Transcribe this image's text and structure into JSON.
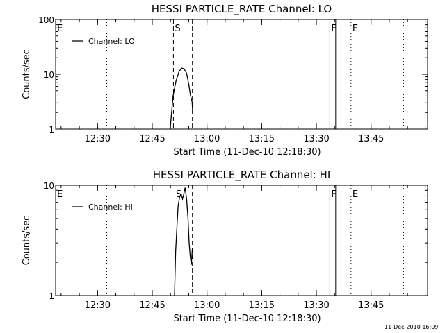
{
  "chart_data": [
    {
      "type": "line",
      "title": "HESSI PARTICLE_RATE Channel: LO",
      "xlabel": "Start Time (11-Dec-10 12:18:30)",
      "ylabel": "Counts/sec",
      "yscale": "log",
      "ylim": [
        1,
        100
      ],
      "y_ticks": [
        {
          "value": 1,
          "label": "1"
        },
        {
          "value": 10,
          "label": "10"
        },
        {
          "value": 100,
          "label": "100"
        }
      ],
      "xlim_minutes_after_start": [
        0,
        102
      ],
      "x_ticks": [
        {
          "value": 11.5,
          "label": "12:30"
        },
        {
          "value": 26.5,
          "label": "12:45"
        },
        {
          "value": 41.5,
          "label": "13:00"
        },
        {
          "value": 56.5,
          "label": "13:15"
        },
        {
          "value": 71.5,
          "label": "13:30"
        },
        {
          "value": 86.5,
          "label": "13:45"
        }
      ],
      "series": [
        {
          "name": "Channel: LO",
          "x": [
            31.4,
            32.2,
            33.0,
            33.8,
            34.5,
            35.2,
            35.9,
            36.5,
            37.0,
            37.4,
            37.6
          ],
          "y": [
            1.0,
            4.0,
            7.5,
            11.0,
            13.0,
            12.6,
            10.5,
            6.6,
            4.0,
            3.2,
            2.0
          ]
        }
      ],
      "legend": {
        "label": "Channel: LO",
        "position": "top-left"
      },
      "events": [
        {
          "label": "E",
          "x": 0,
          "style": "none"
        },
        {
          "label": "",
          "x": 14.0,
          "style": "dotted"
        },
        {
          "label": "S",
          "x": 32.3,
          "style": "dashed"
        },
        {
          "label": "",
          "x": 37.5,
          "style": "dashed"
        },
        {
          "label": "F",
          "x": 75.2,
          "style": "solid"
        },
        {
          "label": "",
          "x": 76.8,
          "style": "solid"
        },
        {
          "label": "E",
          "x": 81.0,
          "style": "dotted"
        },
        {
          "label": "",
          "x": 95.4,
          "style": "dotted"
        }
      ]
    },
    {
      "type": "line",
      "title": "HESSI PARTICLE_RATE Channel: HI",
      "xlabel": "Start Time (11-Dec-10 12:18:30)",
      "ylabel": "Counts/sec",
      "yscale": "log",
      "ylim": [
        1,
        10
      ],
      "y_ticks": [
        {
          "value": 1,
          "label": "1"
        },
        {
          "value": 10,
          "label": "10"
        }
      ],
      "xlim_minutes_after_start": [
        0,
        102
      ],
      "x_ticks": [
        {
          "value": 11.5,
          "label": "12:30"
        },
        {
          "value": 26.5,
          "label": "12:45"
        },
        {
          "value": 41.5,
          "label": "13:00"
        },
        {
          "value": 56.5,
          "label": "13:15"
        },
        {
          "value": 71.5,
          "label": "13:30"
        },
        {
          "value": 86.5,
          "label": "13:45"
        }
      ],
      "series": [
        {
          "name": "Channel: HI",
          "x": [
            32.6,
            32.9,
            33.3,
            33.6,
            34.0,
            34.4,
            34.8,
            35.1,
            35.5,
            35.9,
            36.3,
            36.6,
            36.9,
            37.2,
            37.5
          ],
          "y": [
            1.0,
            2.5,
            4.5,
            6.5,
            7.8,
            8.4,
            7.5,
            8.2,
            9.5,
            7.6,
            5.0,
            3.0,
            2.3,
            1.9,
            2.7
          ]
        }
      ],
      "legend": {
        "label": "Channel: HI",
        "position": "top-left"
      },
      "events": [
        {
          "label": "E",
          "x": 0,
          "style": "none"
        },
        {
          "label": "",
          "x": 14.0,
          "style": "dotted"
        },
        {
          "label": "S",
          "x": 32.6,
          "style": "none"
        },
        {
          "label": "",
          "x": 37.5,
          "style": "dashed"
        },
        {
          "label": "F",
          "x": 75.2,
          "style": "solid"
        },
        {
          "label": "",
          "x": 76.8,
          "style": "solid"
        },
        {
          "label": "E",
          "x": 81.0,
          "style": "dotted"
        },
        {
          "label": "",
          "x": 95.4,
          "style": "dotted"
        }
      ]
    }
  ],
  "footer": {
    "timestamp": "11-Dec-2010 16:09"
  }
}
